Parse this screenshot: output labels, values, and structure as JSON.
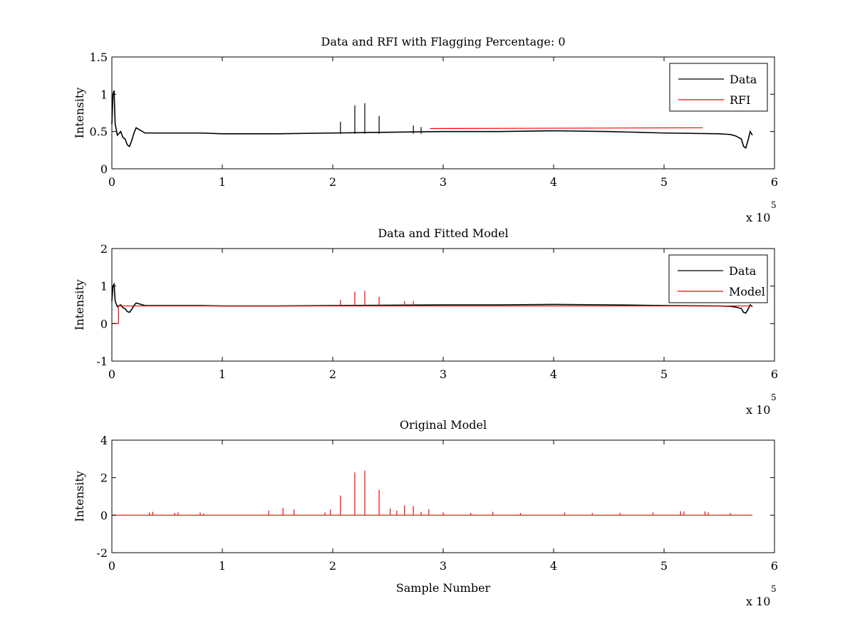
{
  "figure": {
    "background": "#ffffff",
    "data_color": "#000000",
    "rfi_color": "#ff0000"
  },
  "chart_data": [
    {
      "type": "line",
      "title": "Data and RFI with Flagging Percentage: 0",
      "ylabel": "Intensity",
      "xlabel": "",
      "xlim": [
        0,
        6
      ],
      "ylim": [
        0,
        1.5
      ],
      "x_ticks": [
        "0",
        "1",
        "2",
        "3",
        "4",
        "5",
        "6"
      ],
      "y_ticks": [
        "0",
        "0.5",
        "1",
        "1.5"
      ],
      "x_exponent": {
        "base": "x 10",
        "power": "5"
      },
      "legend": {
        "position": "top-right",
        "entries": [
          "Data",
          "RFI"
        ]
      },
      "series": [
        {
          "name": "Data",
          "color": "#000000",
          "x": [
            0,
            0.01,
            0.02,
            0.03,
            0.05,
            0.08,
            0.1,
            0.12,
            0.14,
            0.16,
            0.18,
            0.2,
            0.22,
            0.3,
            0.5,
            0.8,
            1.0,
            1.5,
            2.0,
            2.5,
            3.0,
            3.5,
            4.0,
            4.5,
            5.0,
            5.5,
            5.6,
            5.65,
            5.7,
            5.72,
            5.74,
            5.76,
            5.78,
            5.8
          ],
          "y": [
            0.6,
            1.0,
            1.05,
            0.6,
            0.45,
            0.5,
            0.42,
            0.4,
            0.32,
            0.3,
            0.38,
            0.48,
            0.55,
            0.48,
            0.48,
            0.48,
            0.47,
            0.47,
            0.48,
            0.49,
            0.5,
            0.5,
            0.51,
            0.5,
            0.48,
            0.47,
            0.46,
            0.44,
            0.4,
            0.3,
            0.28,
            0.38,
            0.5,
            0.45
          ],
          "spikes": [
            {
              "x": 2.07,
              "y": 0.63
            },
            {
              "x": 2.2,
              "y": 0.85
            },
            {
              "x": 2.29,
              "y": 0.88
            },
            {
              "x": 2.42,
              "y": 0.71
            },
            {
              "x": 2.73,
              "y": 0.58
            },
            {
              "x": 2.8,
              "y": 0.56
            }
          ]
        },
        {
          "name": "RFI",
          "color": "#ff0000",
          "x": [
            2.88,
            5.35
          ],
          "y": [
            0.54,
            0.55
          ]
        }
      ]
    },
    {
      "type": "line",
      "title": "Data and Fitted Model",
      "ylabel": "Intensity",
      "xlabel": "",
      "xlim": [
        0,
        6
      ],
      "ylim": [
        -1,
        2
      ],
      "x_ticks": [
        "0",
        "1",
        "2",
        "3",
        "4",
        "5",
        "6"
      ],
      "y_ticks": [
        "-1",
        "0",
        "1",
        "2"
      ],
      "x_exponent": {
        "base": "x 10",
        "power": "5"
      },
      "legend": {
        "position": "top-right",
        "entries": [
          "Data",
          "Model"
        ]
      },
      "series": [
        {
          "name": "Data",
          "color": "#000000",
          "x": [
            0,
            0.01,
            0.02,
            0.03,
            0.05,
            0.08,
            0.1,
            0.12,
            0.14,
            0.16,
            0.18,
            0.2,
            0.22,
            0.3,
            0.5,
            0.8,
            1.0,
            1.5,
            2.0,
            2.5,
            3.0,
            3.5,
            4.0,
            4.5,
            5.0,
            5.5,
            5.6,
            5.65,
            5.7,
            5.72,
            5.74,
            5.76,
            5.78,
            5.8
          ],
          "y": [
            0.6,
            1.0,
            1.05,
            0.6,
            0.45,
            0.5,
            0.42,
            0.4,
            0.32,
            0.3,
            0.38,
            0.48,
            0.55,
            0.48,
            0.48,
            0.48,
            0.47,
            0.47,
            0.48,
            0.49,
            0.5,
            0.5,
            0.51,
            0.5,
            0.48,
            0.47,
            0.46,
            0.44,
            0.4,
            0.3,
            0.28,
            0.38,
            0.5,
            0.45
          ]
        },
        {
          "name": "Model",
          "color": "#ff0000",
          "x": [
            0,
            0.06,
            0.06,
            5.8
          ],
          "y": [
            0,
            0,
            0.47,
            0.47
          ],
          "spikes": [
            {
              "x": 2.07,
              "y": 0.63
            },
            {
              "x": 2.2,
              "y": 0.85
            },
            {
              "x": 2.29,
              "y": 0.88
            },
            {
              "x": 2.42,
              "y": 0.71
            },
            {
              "x": 2.65,
              "y": 0.6
            },
            {
              "x": 2.73,
              "y": 0.6
            }
          ]
        }
      ]
    },
    {
      "type": "line",
      "title": "Original Model",
      "ylabel": "Intensity",
      "xlabel": "Sample Number",
      "xlim": [
        0,
        6
      ],
      "ylim": [
        -2,
        4
      ],
      "x_ticks": [
        "0",
        "1",
        "2",
        "3",
        "4",
        "5",
        "6"
      ],
      "y_ticks": [
        "-2",
        "0",
        "2",
        "4"
      ],
      "x_exponent": {
        "base": "x 10",
        "power": "5"
      },
      "series": [
        {
          "name": "",
          "color": "#ff0000",
          "x": [
            0,
            5.8
          ],
          "y": [
            0,
            0
          ],
          "spikes": [
            {
              "x": 0.34,
              "y": 0.15
            },
            {
              "x": 0.37,
              "y": 0.18
            },
            {
              "x": 0.57,
              "y": 0.12
            },
            {
              "x": 0.6,
              "y": 0.15
            },
            {
              "x": 0.8,
              "y": 0.15
            },
            {
              "x": 0.83,
              "y": 0.1
            },
            {
              "x": 1.42,
              "y": 0.25
            },
            {
              "x": 1.55,
              "y": 0.38
            },
            {
              "x": 1.65,
              "y": 0.3
            },
            {
              "x": 1.93,
              "y": 0.15
            },
            {
              "x": 1.98,
              "y": 0.3
            },
            {
              "x": 2.07,
              "y": 1.05
            },
            {
              "x": 2.2,
              "y": 2.28
            },
            {
              "x": 2.29,
              "y": 2.38
            },
            {
              "x": 2.42,
              "y": 1.35
            },
            {
              "x": 2.52,
              "y": 0.35
            },
            {
              "x": 2.58,
              "y": 0.25
            },
            {
              "x": 2.65,
              "y": 0.52
            },
            {
              "x": 2.73,
              "y": 0.48
            },
            {
              "x": 2.8,
              "y": 0.18
            },
            {
              "x": 2.87,
              "y": 0.32
            },
            {
              "x": 3.0,
              "y": 0.15
            },
            {
              "x": 3.25,
              "y": 0.12
            },
            {
              "x": 3.45,
              "y": 0.18
            },
            {
              "x": 3.7,
              "y": 0.12
            },
            {
              "x": 4.1,
              "y": 0.15
            },
            {
              "x": 4.35,
              "y": 0.12
            },
            {
              "x": 4.6,
              "y": 0.12
            },
            {
              "x": 4.9,
              "y": 0.15
            },
            {
              "x": 5.15,
              "y": 0.22
            },
            {
              "x": 5.18,
              "y": 0.2
            },
            {
              "x": 5.37,
              "y": 0.2
            },
            {
              "x": 5.4,
              "y": 0.15
            },
            {
              "x": 5.6,
              "y": 0.12
            }
          ]
        }
      ]
    }
  ]
}
